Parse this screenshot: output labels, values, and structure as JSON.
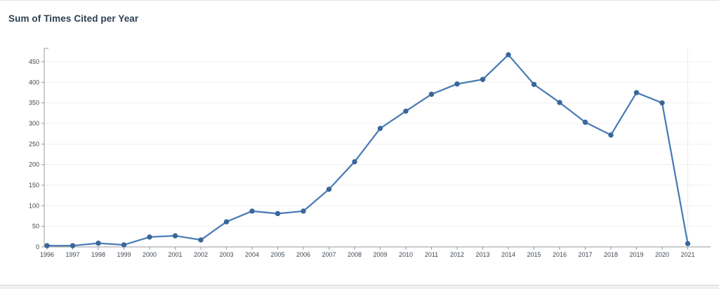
{
  "page": {
    "title": "Sum of Times Cited per Year"
  },
  "chart_data": {
    "type": "line",
    "title": "Sum of Times Cited per Year",
    "x": [
      1996,
      1997,
      1998,
      1999,
      2000,
      2001,
      2002,
      2003,
      2004,
      2005,
      2006,
      2007,
      2008,
      2009,
      2010,
      2011,
      2012,
      2013,
      2014,
      2015,
      2016,
      2017,
      2018,
      2019,
      2020,
      2021
    ],
    "values": [
      3,
      3,
      9,
      5,
      24,
      27,
      17,
      61,
      87,
      81,
      87,
      140,
      207,
      288,
      330,
      371,
      396,
      407,
      467,
      395,
      351,
      303,
      272,
      375,
      350,
      8
    ],
    "xlabel": "",
    "ylabel": "",
    "ylim": [
      0,
      470
    ],
    "yticks": [
      0,
      50,
      100,
      150,
      200,
      250,
      300,
      350,
      400,
      450
    ],
    "grid": "horizontal",
    "legend": "none",
    "line_color": "#4a7cb5",
    "marker_color": "#38679a",
    "gridline_color": "#f1f1f4",
    "axis_color": "#999999",
    "y_label_color": "#444444",
    "x_label_color": "#3d4854"
  }
}
